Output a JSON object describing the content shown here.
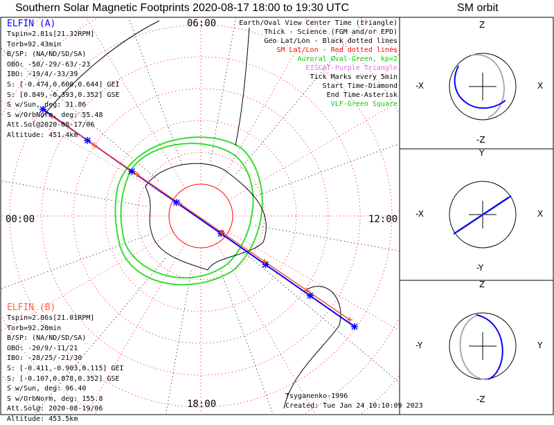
{
  "title": "Southern Solar Magnetic Footprints 2020-08-17 18:00 to 19:30 UTC",
  "orbit_title": "SM orbit",
  "map": {
    "labels": {
      "top": "06:00",
      "right": "12:00",
      "bottom": "18:00",
      "left": "00:00"
    }
  },
  "elfin_a": {
    "name": "ELFIN (A)",
    "color": "#0000ff",
    "lines": [
      "Tspin=2.81s[21.32RPM]",
      "Torb=92.43min",
      "B/SP: (NA/ND/SD/SA)",
      "OBO: -50/-29/-63/-23",
      "IBO: -19/4/-33/39",
      "S: [-0.474,0.600,0.644] GEI",
      "S: [0.849,-0.393,0.352] GSE",
      "S w/Sun, deg: 31.86",
      "S w/OrbNorm, deg: 55.48",
      "Att.Sol@2020-08-17/06",
      "Altitude: 451.4km"
    ]
  },
  "elfin_b": {
    "name": "ELFIN (B)",
    "color": "#ff6040",
    "lines": [
      "Tspin=2.86s[21.01RPM]",
      "Torb=92.20min",
      "B/SP: (NA/ND/SD/SA)",
      "OBO: -20/9/-11/21",
      "IBO: -28/25/-21/30",
      "S: [-0.411,-0.903,0.115] GEI",
      "S: [-0.107,0.878,0.352] GSE",
      "S w/Sun, deg: 96.40",
      "S w/OrbNorm, deg: 155.8",
      "Att.Sol@: 2020-08-19/06",
      "Altitude: 453.5km"
    ]
  },
  "legend": [
    {
      "text": "Earth/Oval View Center Time (triangle)",
      "color": "#000000"
    },
    {
      "text": "Thick - Science (FGM and/or EPD)",
      "color": "#000000"
    },
    {
      "text": "Geo Lat/Lon - Black dotted lines",
      "color": "#000000"
    },
    {
      "text": "SM Lat/Lon - Red dotted lines",
      "color": "#ff0000"
    },
    {
      "text": "Auroral Oval-Green, kp=2",
      "color": "#00cc00"
    },
    {
      "text": "EISCAT-Purple Triangle",
      "color": "#ee66ee"
    },
    {
      "text": "Tick Marks every 5min",
      "color": "#000000"
    },
    {
      "text": "Start Time-Diamond",
      "color": "#000000"
    },
    {
      "text": "End Time-Asterisk",
      "color": "#000000"
    },
    {
      "text": "VLF-Green Square",
      "color": "#00cc00"
    }
  ],
  "credits": {
    "model": "Tsyganenko-1996",
    "created": "Created: Tue Jan 24 10:10:09 2023"
  },
  "orbit_panels": [
    {
      "top": "Z",
      "bottom": "-Z",
      "left": "-X",
      "right": "X"
    },
    {
      "top": "Y",
      "bottom": "-Y",
      "left": "-X",
      "right": "X"
    },
    {
      "top": "Z",
      "bottom": "-Z",
      "left": "-Y",
      "right": "Y"
    }
  ]
}
